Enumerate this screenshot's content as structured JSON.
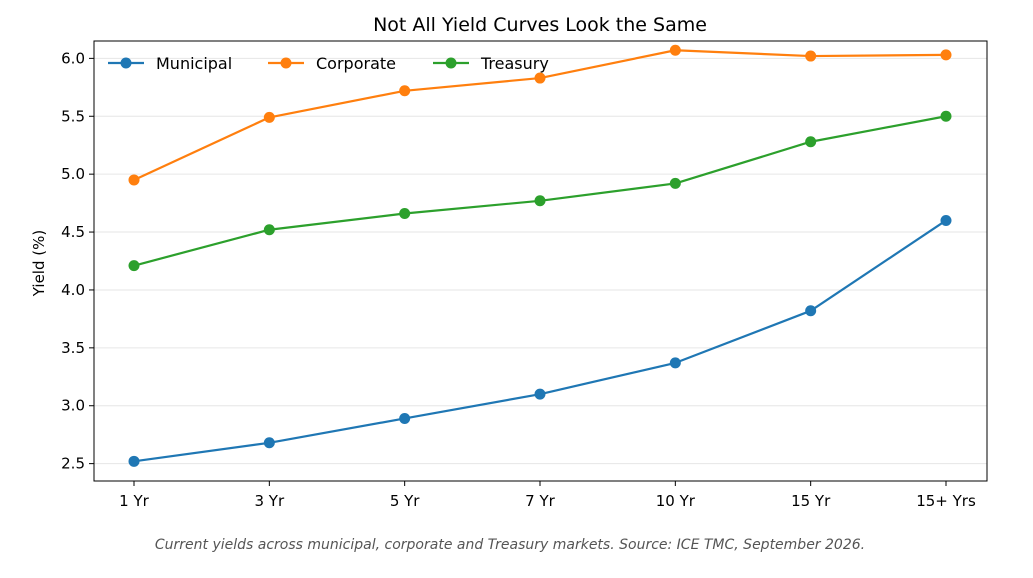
{
  "chart_data": {
    "type": "line",
    "title": "Not All Yield Curves Look the Same",
    "xlabel": "",
    "ylabel": "Yield (%)",
    "categories": [
      "1 Yr",
      "3 Yr",
      "5 Yr",
      "7 Yr",
      "10 Yr",
      "15 Yr",
      "15+ Yrs"
    ],
    "ylim": [
      2.35,
      6.15
    ],
    "yticks": [
      2.5,
      3.0,
      3.5,
      4.0,
      4.5,
      5.0,
      5.5,
      6.0
    ],
    "grid": "horizontal",
    "legend_position": "top-left",
    "series": [
      {
        "name": "Municipal",
        "color": "#1f77b4",
        "values": [
          2.52,
          2.68,
          2.89,
          3.1,
          3.37,
          3.82,
          4.6
        ]
      },
      {
        "name": "Corporate",
        "color": "#ff7f0e",
        "values": [
          4.95,
          5.49,
          5.72,
          5.83,
          6.07,
          6.02,
          6.03
        ]
      },
      {
        "name": "Treasury",
        "color": "#2ca02c",
        "values": [
          4.21,
          4.52,
          4.66,
          4.77,
          4.92,
          5.28,
          5.5
        ]
      }
    ]
  },
  "caption": "Current yields across municipal, corporate and Treasury markets. Source: ICE TMC, September 2026."
}
